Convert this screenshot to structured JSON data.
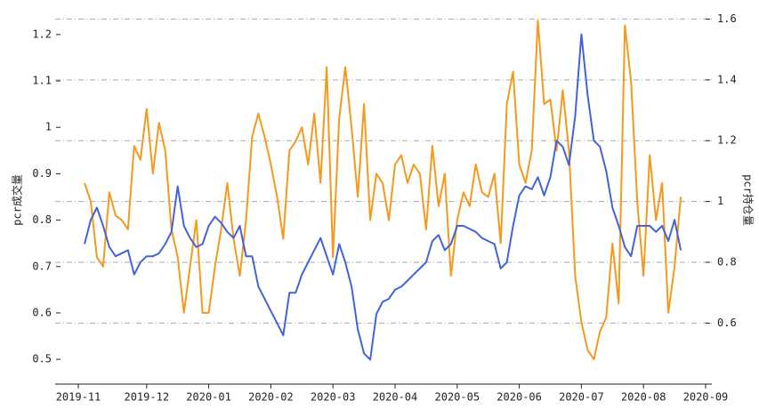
{
  "chart_data": {
    "type": "line",
    "ylabel": "pcr成交量",
    "y2label": "pcr持仓量",
    "categories": [
      "2019-11",
      null,
      null,
      null,
      null,
      null,
      null,
      null,
      null,
      null,
      null,
      "2019-12",
      null,
      null,
      null,
      null,
      null,
      null,
      null,
      null,
      null,
      "2020-01",
      null,
      null,
      null,
      null,
      null,
      null,
      null,
      null,
      null,
      "2020-02",
      null,
      null,
      null,
      null,
      null,
      null,
      null,
      null,
      null,
      "2020-03",
      null,
      null,
      null,
      null,
      null,
      null,
      null,
      null,
      null,
      "2020-04",
      null,
      null,
      null,
      null,
      null,
      null,
      null,
      null,
      null,
      "2020-05",
      null,
      null,
      null,
      null,
      null,
      null,
      null,
      null,
      null,
      "2020-06",
      null,
      null,
      null,
      null,
      null,
      null,
      null,
      null,
      null,
      "2020-07",
      null,
      null,
      null,
      null,
      null,
      null,
      null,
      null,
      null,
      "2020-08",
      null,
      null,
      null,
      null,
      null,
      null,
      null,
      null,
      null,
      "2020-09"
    ],
    "series": [
      {
        "name": "pcr成交量",
        "color": "#f39a1e",
        "axis": "y",
        "values": [
          null,
          0.88,
          0.84,
          0.72,
          0.7,
          0.86,
          0.81,
          0.8,
          0.78,
          0.96,
          0.93,
          1.04,
          0.9,
          1.01,
          0.95,
          0.78,
          0.72,
          0.6,
          0.7,
          0.8,
          0.6,
          0.6,
          0.7,
          0.78,
          0.88,
          0.76,
          0.68,
          0.8,
          0.98,
          1.03,
          0.98,
          0.92,
          0.85,
          0.76,
          0.95,
          0.97,
          1.0,
          0.92,
          1.03,
          0.88,
          1.13,
          0.72,
          1.02,
          1.13,
          1.0,
          0.85,
          1.05,
          0.8,
          0.9,
          0.88,
          0.8,
          0.92,
          0.94,
          0.88,
          0.92,
          0.9,
          0.78,
          0.96,
          0.83,
          0.9,
          0.68,
          0.8,
          0.86,
          0.83,
          0.92,
          0.86,
          0.85,
          0.9,
          0.75,
          1.05,
          1.12,
          0.92,
          0.88,
          0.95,
          1.23,
          1.05,
          1.06,
          0.95,
          1.08,
          0.95,
          0.68,
          0.58,
          0.52,
          0.5,
          0.56,
          0.59,
          0.75,
          0.62,
          1.22,
          1.1,
          0.84,
          0.68,
          0.94,
          0.8,
          0.88,
          0.6,
          0.7,
          0.85,
          null,
          null,
          null,
          null
        ]
      },
      {
        "name": "pcr持仓量",
        "color": "#4363d6",
        "axis": "y2",
        "values": [
          null,
          0.86,
          0.94,
          0.98,
          0.92,
          0.85,
          0.82,
          0.83,
          0.84,
          0.76,
          0.8,
          0.82,
          0.82,
          0.83,
          0.86,
          0.9,
          1.05,
          0.92,
          0.88,
          0.85,
          0.86,
          0.92,
          0.95,
          0.93,
          0.9,
          0.88,
          0.92,
          0.82,
          0.82,
          0.72,
          0.68,
          0.64,
          0.6,
          0.56,
          0.7,
          0.7,
          0.76,
          0.8,
          0.84,
          0.88,
          0.82,
          0.76,
          0.86,
          0.8,
          0.72,
          0.58,
          0.5,
          0.48,
          0.63,
          0.67,
          0.68,
          0.71,
          0.72,
          0.74,
          0.76,
          0.78,
          0.8,
          0.87,
          0.89,
          0.84,
          0.86,
          0.92,
          0.92,
          0.91,
          0.9,
          0.88,
          0.87,
          0.86,
          0.78,
          0.8,
          0.92,
          1.02,
          1.05,
          1.04,
          1.08,
          1.02,
          1.08,
          1.2,
          1.18,
          1.12,
          1.28,
          1.55,
          1.35,
          1.2,
          1.18,
          1.1,
          0.98,
          0.92,
          0.85,
          0.82,
          0.92,
          0.92,
          0.92,
          0.9,
          0.92,
          0.87,
          0.94,
          0.84,
          null,
          null,
          null,
          null
        ]
      }
    ],
    "ylim": [
      0.46,
      1.24
    ],
    "yticks": [
      0.5,
      0.6,
      0.7,
      0.8,
      0.9,
      1.0,
      1.1,
      1.2
    ],
    "y2lim": [
      0.42,
      1.61
    ],
    "y2ticks": [
      0.6,
      0.8,
      1.0,
      1.2,
      1.4,
      1.6
    ],
    "grid": true
  }
}
